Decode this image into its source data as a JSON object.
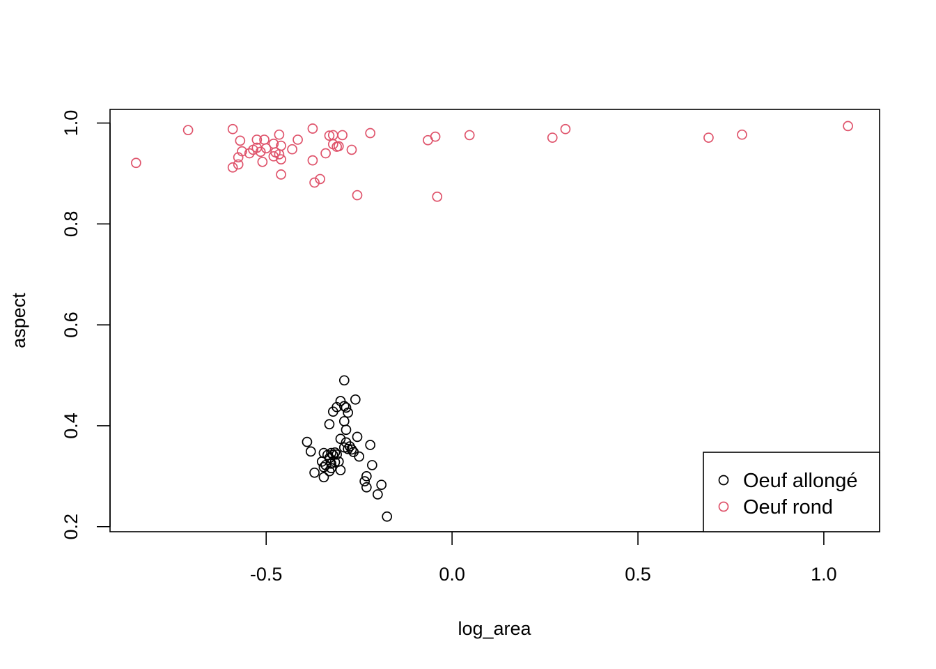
{
  "chart_data": {
    "type": "scatter",
    "xlabel": "log_area",
    "ylabel": "aspect",
    "xlim": [
      -0.92,
      1.15
    ],
    "ylim": [
      0.19,
      1.027
    ],
    "x_ticks": [
      -0.5,
      0.0,
      0.5,
      1.0
    ],
    "x_tick_labels": [
      "-0.5",
      "0.0",
      "0.5",
      "1.0"
    ],
    "y_ticks": [
      0.2,
      0.4,
      0.6,
      0.8,
      1.0
    ],
    "y_tick_labels": [
      "0.2",
      "0.4",
      "0.6",
      "0.8",
      "1.0"
    ],
    "grid": false,
    "legend": {
      "position": "bottom-right"
    },
    "series": [
      {
        "name": "Oeuf allongé",
        "color": "#000000",
        "points": [
          [
            -0.29,
            0.49
          ],
          [
            -0.3,
            0.449
          ],
          [
            -0.26,
            0.452
          ],
          [
            -0.31,
            0.437
          ],
          [
            -0.29,
            0.439
          ],
          [
            -0.285,
            0.436
          ],
          [
            -0.32,
            0.428
          ],
          [
            -0.28,
            0.426
          ],
          [
            -0.29,
            0.409
          ],
          [
            -0.33,
            0.403
          ],
          [
            -0.285,
            0.392
          ],
          [
            -0.255,
            0.378
          ],
          [
            -0.3,
            0.374
          ],
          [
            -0.39,
            0.368
          ],
          [
            -0.285,
            0.367
          ],
          [
            -0.29,
            0.357
          ],
          [
            -0.275,
            0.359
          ],
          [
            -0.22,
            0.362
          ],
          [
            -0.28,
            0.354
          ],
          [
            -0.265,
            0.348
          ],
          [
            -0.27,
            0.353
          ],
          [
            -0.38,
            0.349
          ],
          [
            -0.345,
            0.346
          ],
          [
            -0.325,
            0.346
          ],
          [
            -0.315,
            0.347
          ],
          [
            -0.31,
            0.343
          ],
          [
            -0.335,
            0.342
          ],
          [
            -0.32,
            0.342
          ],
          [
            -0.25,
            0.339
          ],
          [
            -0.33,
            0.336
          ],
          [
            -0.35,
            0.329
          ],
          [
            -0.305,
            0.329
          ],
          [
            -0.315,
            0.328
          ],
          [
            -0.34,
            0.322
          ],
          [
            -0.325,
            0.325
          ],
          [
            -0.215,
            0.322
          ],
          [
            -0.345,
            0.318
          ],
          [
            -0.325,
            0.316
          ],
          [
            -0.3,
            0.312
          ],
          [
            -0.33,
            0.31
          ],
          [
            -0.37,
            0.307
          ],
          [
            -0.23,
            0.3
          ],
          [
            -0.345,
            0.298
          ],
          [
            -0.235,
            0.29
          ],
          [
            -0.19,
            0.283
          ],
          [
            -0.23,
            0.278
          ],
          [
            -0.2,
            0.264
          ],
          [
            -0.175,
            0.22
          ]
        ]
      },
      {
        "name": "Oeuf rond",
        "color": "#DF536B",
        "points": [
          [
            1.065,
            0.994
          ],
          [
            -0.59,
            0.988
          ],
          [
            -0.375,
            0.989
          ],
          [
            0.305,
            0.988
          ],
          [
            -0.71,
            0.986
          ],
          [
            -0.22,
            0.98
          ],
          [
            -0.465,
            0.977
          ],
          [
            0.78,
            0.977
          ],
          [
            -0.32,
            0.976
          ],
          [
            -0.295,
            0.976
          ],
          [
            0.047,
            0.976
          ],
          [
            -0.33,
            0.975
          ],
          [
            -0.045,
            0.973
          ],
          [
            0.27,
            0.971
          ],
          [
            0.69,
            0.971
          ],
          [
            -0.505,
            0.967
          ],
          [
            -0.525,
            0.967
          ],
          [
            -0.415,
            0.967
          ],
          [
            -0.065,
            0.966
          ],
          [
            -0.57,
            0.965
          ],
          [
            -0.48,
            0.959
          ],
          [
            -0.32,
            0.958
          ],
          [
            -0.31,
            0.953
          ],
          [
            -0.305,
            0.954
          ],
          [
            -0.46,
            0.955
          ],
          [
            -0.525,
            0.951
          ],
          [
            -0.5,
            0.95
          ],
          [
            -0.27,
            0.947
          ],
          [
            -0.43,
            0.948
          ],
          [
            -0.535,
            0.947
          ],
          [
            -0.565,
            0.944
          ],
          [
            -0.515,
            0.943
          ],
          [
            -0.475,
            0.942
          ],
          [
            -0.545,
            0.94
          ],
          [
            -0.34,
            0.94
          ],
          [
            -0.465,
            0.938
          ],
          [
            -0.48,
            0.934
          ],
          [
            -0.575,
            0.932
          ],
          [
            -0.46,
            0.928
          ],
          [
            -0.375,
            0.926
          ],
          [
            -0.51,
            0.923
          ],
          [
            -0.85,
            0.921
          ],
          [
            -0.575,
            0.918
          ],
          [
            -0.59,
            0.912
          ],
          [
            -0.46,
            0.898
          ],
          [
            -0.355,
            0.889
          ],
          [
            -0.37,
            0.882
          ],
          [
            -0.255,
            0.857
          ],
          [
            -0.04,
            0.854
          ]
        ]
      }
    ]
  }
}
